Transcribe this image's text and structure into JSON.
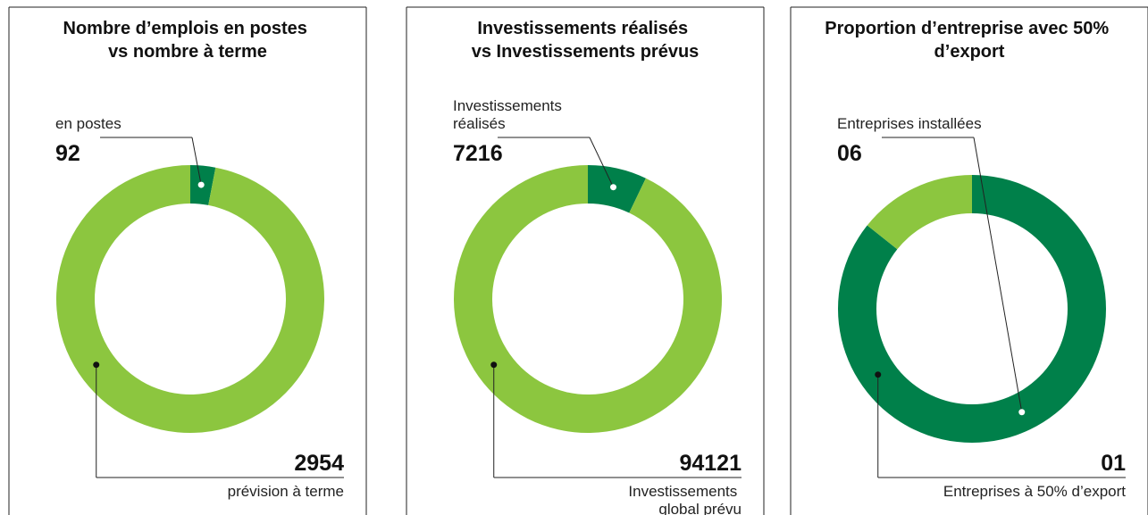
{
  "chart_data": [
    {
      "type": "pie",
      "title": "Nombre d’emplois en postes vs nombre à terme",
      "categories": [
        "en postes",
        "prévision à terme"
      ],
      "values": [
        92,
        2954
      ],
      "colors": [
        "#00804a",
        "#8cc63f"
      ],
      "donut": true
    },
    {
      "type": "pie",
      "title": "Investissements réalisés vs Investissements prévus",
      "categories": [
        "Investissements réalisés",
        "Investissements global prévu"
      ],
      "values": [
        7216,
        94121
      ],
      "colors": [
        "#00804a",
        "#8cc63f"
      ],
      "donut": true
    },
    {
      "type": "pie",
      "title": "Proportion d’entreprise avec 50% d’export",
      "categories": [
        "Entreprises installées",
        "Entreprises à 50% d’export"
      ],
      "values": [
        6,
        1
      ],
      "value_labels": [
        "06",
        "01"
      ],
      "colors": [
        "#00804a",
        "#8cc63f"
      ],
      "donut": true
    }
  ]
}
